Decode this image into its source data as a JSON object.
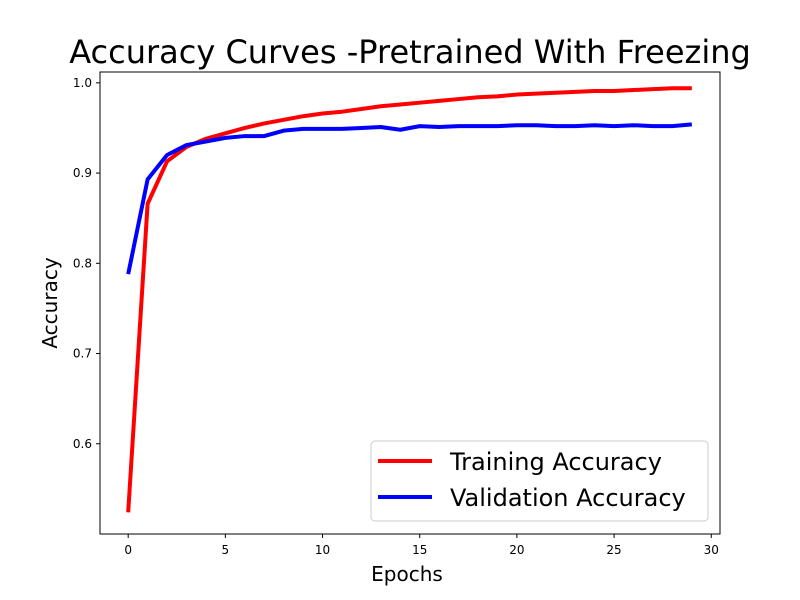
{
  "chart_data": {
    "type": "line",
    "title": "Accuracy Curves -Pretrained With Freezing",
    "xlabel": "Epochs",
    "ylabel": "Accuracy",
    "xlim": [
      -1.45,
      30.45
    ],
    "ylim": [
      0.5,
      1.012
    ],
    "xticks": [
      0,
      5,
      10,
      15,
      20,
      25,
      30
    ],
    "xtick_labels": [
      "0",
      "5",
      "10",
      "15",
      "20",
      "25",
      "30"
    ],
    "yticks": [
      0.6,
      0.7,
      0.8,
      0.9,
      1.0
    ],
    "ytick_labels": [
      "0.6",
      "0.7",
      "0.8",
      "0.9",
      "1.0"
    ],
    "grid": false,
    "legend_position": "lower-right",
    "x": [
      0,
      1,
      2,
      3,
      4,
      5,
      6,
      7,
      8,
      9,
      10,
      11,
      12,
      13,
      14,
      15,
      16,
      17,
      18,
      19,
      20,
      21,
      22,
      23,
      24,
      25,
      26,
      27,
      28,
      29
    ],
    "series": [
      {
        "name": "Training Accuracy",
        "color": "#ff0000",
        "values": [
          0.524,
          0.866,
          0.913,
          0.929,
          0.938,
          0.944,
          0.95,
          0.955,
          0.959,
          0.963,
          0.966,
          0.968,
          0.971,
          0.974,
          0.976,
          0.978,
          0.98,
          0.982,
          0.984,
          0.985,
          0.987,
          0.988,
          0.989,
          0.99,
          0.991,
          0.991,
          0.992,
          0.993,
          0.994,
          0.994
        ]
      },
      {
        "name": "Validation Accuracy",
        "color": "#0000ff",
        "values": [
          0.788,
          0.893,
          0.92,
          0.931,
          0.935,
          0.939,
          0.941,
          0.941,
          0.947,
          0.949,
          0.949,
          0.949,
          0.95,
          0.951,
          0.948,
          0.952,
          0.951,
          0.952,
          0.952,
          0.952,
          0.953,
          0.953,
          0.952,
          0.952,
          0.953,
          0.952,
          0.953,
          0.952,
          0.952,
          0.954
        ]
      }
    ]
  }
}
